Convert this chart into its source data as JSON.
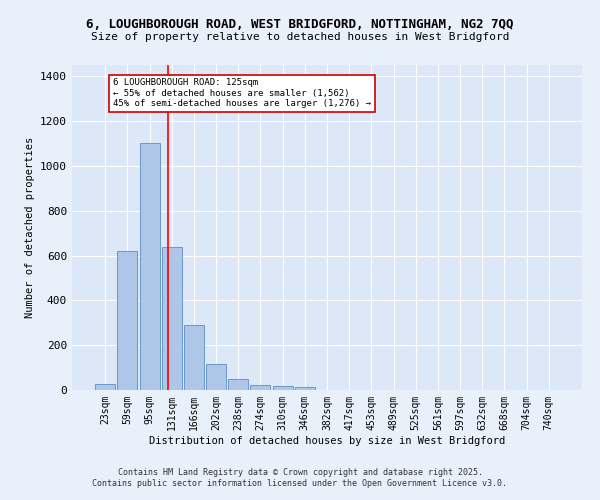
{
  "title_line1": "6, LOUGHBOROUGH ROAD, WEST BRIDGFORD, NOTTINGHAM, NG2 7QQ",
  "title_line2": "Size of property relative to detached houses in West Bridgford",
  "xlabel": "Distribution of detached houses by size in West Bridgford",
  "ylabel": "Number of detached properties",
  "bar_color": "#aec6e8",
  "bar_edge_color": "#5b8ec4",
  "background_color": "#dce8f8",
  "fig_background_color": "#e8f0fa",
  "grid_color": "#ffffff",
  "categories": [
    "23sqm",
    "59sqm",
    "95sqm",
    "131sqm",
    "166sqm",
    "202sqm",
    "238sqm",
    "274sqm",
    "310sqm",
    "346sqm",
    "382sqm",
    "417sqm",
    "453sqm",
    "489sqm",
    "525sqm",
    "561sqm",
    "597sqm",
    "632sqm",
    "668sqm",
    "704sqm",
    "740sqm"
  ],
  "values": [
    25,
    620,
    1100,
    640,
    290,
    115,
    48,
    22,
    18,
    12,
    0,
    0,
    0,
    0,
    0,
    0,
    0,
    0,
    0,
    0,
    0
  ],
  "red_line_x": 2.85,
  "annotation_text": "6 LOUGHBOROUGH ROAD: 125sqm\n← 55% of detached houses are smaller (1,562)\n45% of semi-detached houses are larger (1,276) →",
  "annotation_box_color": "#ffffff",
  "annotation_box_edge": "#cc0000",
  "ylim": [
    0,
    1450
  ],
  "yticks": [
    0,
    200,
    400,
    600,
    800,
    1000,
    1200,
    1400
  ],
  "footer_line1": "Contains HM Land Registry data © Crown copyright and database right 2025.",
  "footer_line2": "Contains public sector information licensed under the Open Government Licence v3.0."
}
